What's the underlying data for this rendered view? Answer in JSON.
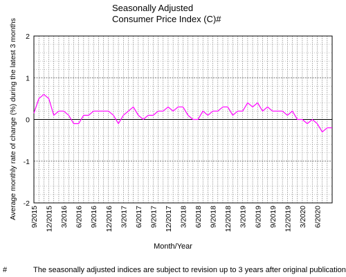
{
  "chart_data": {
    "type": "line",
    "title": "Seasonally Adjusted\nConsumer Price Index (C)#",
    "xlabel": "Month/Year",
    "ylabel": "Average monthly rate of change (%) during the latest 3 months",
    "ylim": [
      -2,
      2
    ],
    "yticks": [
      "2",
      "1",
      "0",
      "-1",
      "-2"
    ],
    "grid": true,
    "x": [
      "9/2015",
      "10/2015",
      "11/2015",
      "12/2015",
      "1/2016",
      "2/2016",
      "3/2016",
      "4/2016",
      "5/2016",
      "6/2016",
      "7/2016",
      "8/2016",
      "9/2016",
      "10/2016",
      "11/2016",
      "12/2016",
      "1/2017",
      "2/2017",
      "3/2017",
      "4/2017",
      "5/2017",
      "6/2017",
      "7/2017",
      "8/2017",
      "9/2017",
      "10/2017",
      "11/2017",
      "12/2017",
      "1/2018",
      "2/2018",
      "3/2018",
      "4/2018",
      "5/2018",
      "6/2018",
      "7/2018",
      "8/2018",
      "9/2018",
      "10/2018",
      "11/2018",
      "12/2018",
      "1/2019",
      "2/2019",
      "3/2019",
      "4/2019",
      "5/2019",
      "6/2019",
      "7/2019",
      "8/2019",
      "9/2019",
      "10/2019",
      "11/2019",
      "12/2019",
      "1/2020",
      "2/2020",
      "3/2020",
      "4/2020",
      "5/2020",
      "6/2020",
      "7/2020",
      "8/2020",
      "9/2020"
    ],
    "xticklabels": [
      "9/2015",
      "12/2015",
      "3/2016",
      "6/2016",
      "9/2016",
      "12/2016",
      "3/2017",
      "6/2017",
      "9/2017",
      "12/2017",
      "3/2018",
      "6/2018",
      "9/2018",
      "12/2018",
      "3/2019",
      "6/2019",
      "9/2019",
      "12/2019",
      "3/2020",
      "6/2020"
    ],
    "series": [
      {
        "color": "#ff00ff",
        "values": [
          0.15,
          0.5,
          0.6,
          0.5,
          0.1,
          0.2,
          0.2,
          0.1,
          -0.1,
          -0.1,
          0.1,
          0.1,
          0.2,
          0.2,
          0.2,
          0.2,
          0.1,
          -0.1,
          0.1,
          0.2,
          0.3,
          0.1,
          0.0,
          0.1,
          0.1,
          0.2,
          0.2,
          0.3,
          0.2,
          0.3,
          0.3,
          0.1,
          0.0,
          0.0,
          0.2,
          0.1,
          0.2,
          0.2,
          0.3,
          0.3,
          0.1,
          0.2,
          0.2,
          0.4,
          0.3,
          0.4,
          0.2,
          0.3,
          0.2,
          0.2,
          0.2,
          0.1,
          0.2,
          0.0,
          0.0,
          -0.1,
          0.0,
          -0.1,
          -0.3,
          -0.2,
          -0.2
        ]
      }
    ]
  },
  "footnote": {
    "mark": "#",
    "text": "The seasonally adjusted indices are subject to revision up to 3 years after original publication."
  }
}
